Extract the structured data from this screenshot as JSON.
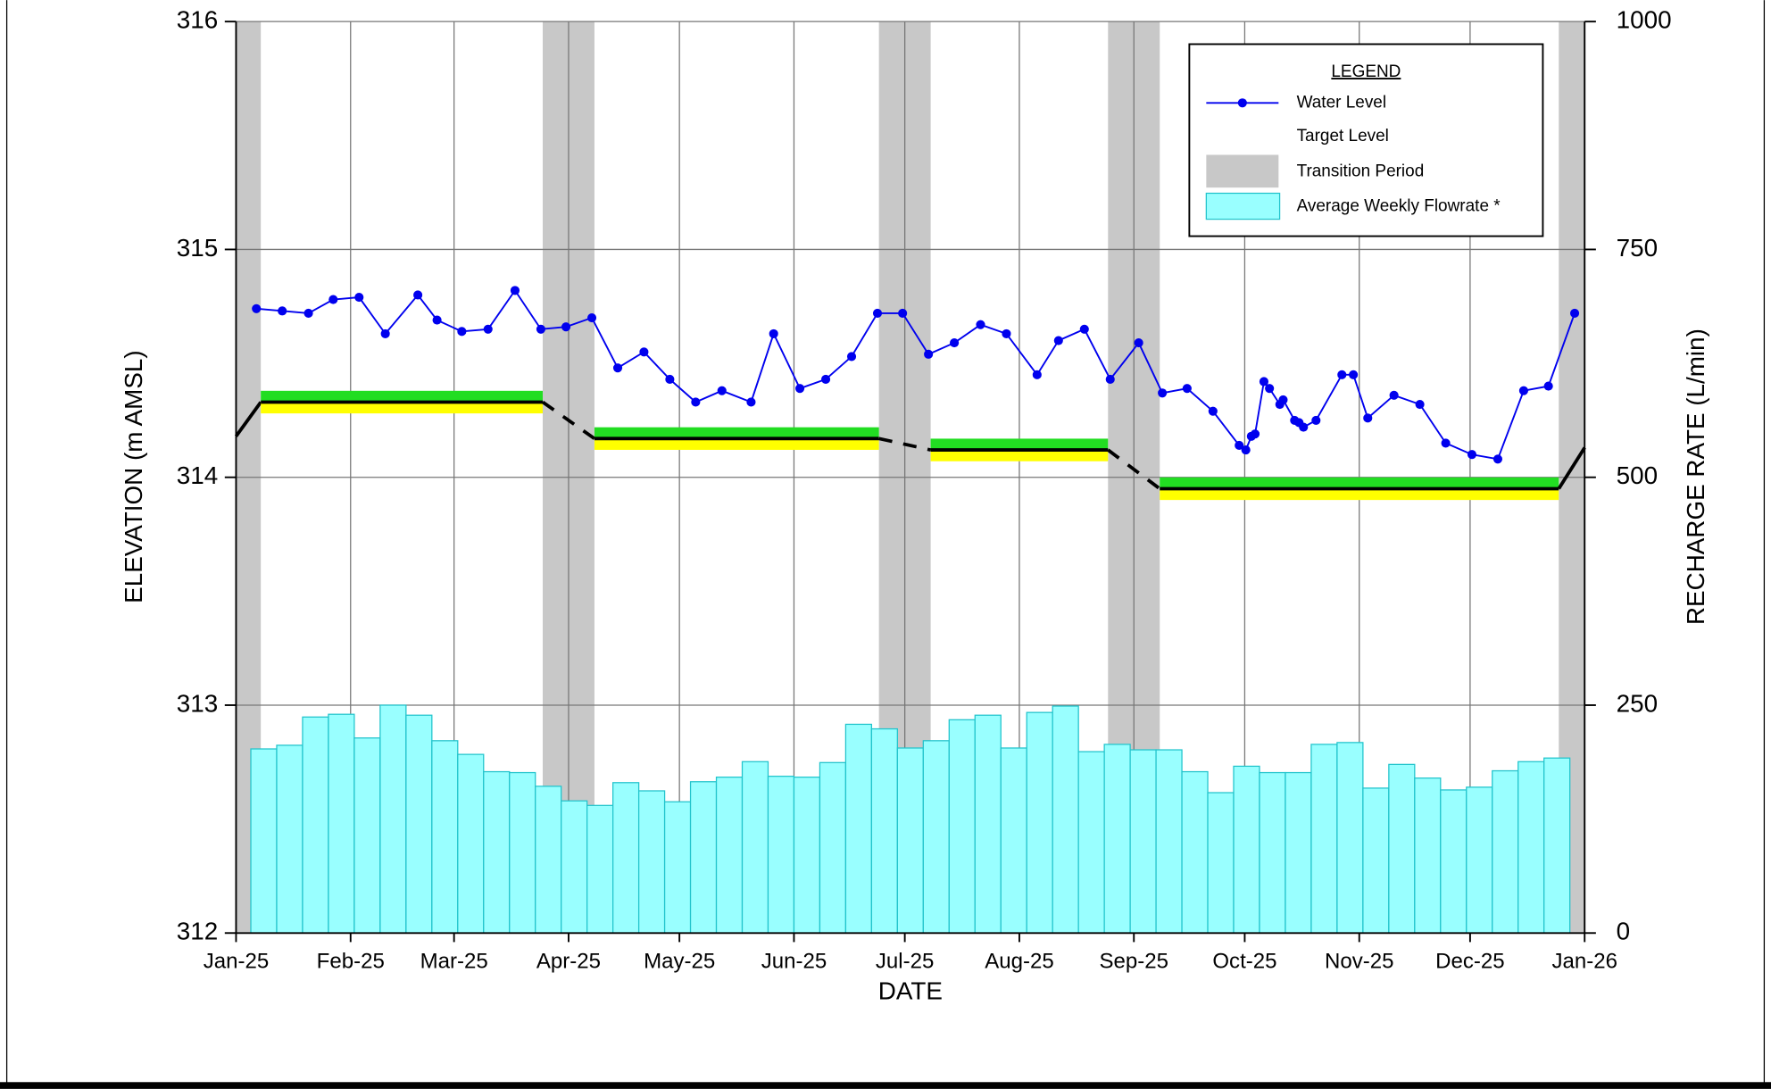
{
  "chart_data": {
    "type": "combo",
    "x_label": "DATE",
    "y_label": "ELEVATION (m AMSL)",
    "y2_label": "RECHARGE RATE (L/min)",
    "xlim": [
      0,
      365
    ],
    "xticks": [
      {
        "value": 0,
        "label": "Jan-25"
      },
      {
        "value": 31,
        "label": "Feb-25"
      },
      {
        "value": 59,
        "label": "Mar-25"
      },
      {
        "value": 90,
        "label": "Apr-25"
      },
      {
        "value": 120,
        "label": "May-25"
      },
      {
        "value": 151,
        "label": "Jun-25"
      },
      {
        "value": 181,
        "label": "Jul-25"
      },
      {
        "value": 212,
        "label": "Aug-25"
      },
      {
        "value": 243,
        "label": "Sep-25"
      },
      {
        "value": 273,
        "label": "Oct-25"
      },
      {
        "value": 304,
        "label": "Nov-25"
      },
      {
        "value": 334,
        "label": "Dec-25"
      },
      {
        "value": 365,
        "label": "Jan-26"
      }
    ],
    "ylim": [
      312,
      316
    ],
    "yticks": [
      312,
      313,
      314,
      315,
      316
    ],
    "y2lim": [
      0,
      1000
    ],
    "y2ticks": [
      0,
      250,
      500,
      750,
      1000
    ],
    "grid": true,
    "legend": {
      "title": "LEGEND",
      "position": "upper right"
    },
    "series": [
      {
        "name": "Water Level",
        "type": "line",
        "color": "#0000ee",
        "x": [
          5.5,
          12.5,
          19.6,
          26.3,
          33.3,
          40.4,
          49.2,
          54.4,
          61.1,
          68.2,
          75.5,
          82.5,
          89.3,
          96.3,
          103.3,
          110.4,
          117.4,
          124.4,
          131.5,
          139.4,
          145.5,
          152.6,
          159.6,
          166.6,
          173.6,
          180.4,
          187.4,
          194.4,
          201.5,
          208.5,
          216.8,
          222.6,
          229.6,
          236.6,
          244.3,
          250.7,
          257.4,
          264.4,
          271.5,
          273.3,
          274.8,
          275.8,
          278.2,
          279.7,
          282.5,
          283.4,
          286.5,
          287.7,
          288.9,
          292.3,
          299.3,
          302.4,
          306.3,
          313.4,
          320.4,
          327.4,
          334.5,
          341.5,
          348.5,
          355.2,
          362.3
        ],
        "values": [
          314.74,
          314.73,
          314.72,
          314.78,
          314.79,
          314.63,
          314.8,
          314.69,
          314.64,
          314.65,
          314.82,
          314.65,
          314.66,
          314.7,
          314.48,
          314.55,
          314.43,
          314.33,
          314.38,
          314.33,
          314.63,
          314.39,
          314.43,
          314.53,
          314.72,
          314.72,
          314.54,
          314.59,
          314.67,
          314.63,
          314.45,
          314.6,
          314.65,
          314.43,
          314.59,
          314.37,
          314.39,
          314.29,
          314.14,
          314.12,
          314.18,
          314.19,
          314.42,
          314.39,
          314.32,
          314.34,
          314.25,
          314.24,
          314.22,
          314.25,
          314.45,
          314.45,
          314.26,
          314.36,
          314.32,
          314.15,
          314.1,
          314.08,
          314.38,
          314.4,
          314.72
        ]
      },
      {
        "name": "Target Level",
        "type": "target",
        "color": "#000000",
        "x": [
          0,
          6.7,
          83,
          97,
          174,
          188,
          236,
          250,
          358,
          365
        ],
        "values": [
          314.18,
          314.33,
          314.33,
          314.17,
          314.17,
          314.12,
          314.12,
          313.95,
          313.95,
          314.13
        ]
      },
      {
        "name": "Transition Period",
        "type": "band",
        "color": "#c8c8c8",
        "ranges": [
          [
            0,
            6.7
          ],
          [
            83,
            97
          ],
          [
            174,
            188
          ],
          [
            236,
            250
          ],
          [
            358,
            365
          ]
        ]
      },
      {
        "name": "Average Weekly Flowrate *",
        "type": "hist",
        "axis": "y2",
        "color": "#99ffff",
        "bins": [
          4,
          11,
          18,
          25,
          32,
          39,
          46,
          53,
          60,
          67,
          74,
          81,
          88,
          95,
          102,
          109,
          116,
          123,
          130,
          137,
          144,
          151,
          158,
          165,
          172,
          179,
          186,
          193,
          200,
          207,
          214,
          221,
          228,
          235,
          242,
          249,
          256,
          263,
          270,
          277,
          284,
          291,
          298,
          305,
          312,
          319,
          326,
          333,
          340,
          347,
          354,
          361
        ],
        "values": [
          202,
          206,
          237,
          240,
          214,
          250,
          239,
          211,
          196,
          177,
          176,
          161,
          145,
          140,
          165,
          156,
          144,
          166,
          171,
          188,
          172,
          171,
          187,
          229,
          224,
          203,
          211,
          234,
          239,
          203,
          242,
          249,
          199,
          207,
          201,
          201,
          177,
          154,
          183,
          176,
          176,
          207,
          209,
          159,
          185,
          170,
          157,
          160,
          178,
          188,
          192
        ]
      }
    ]
  }
}
